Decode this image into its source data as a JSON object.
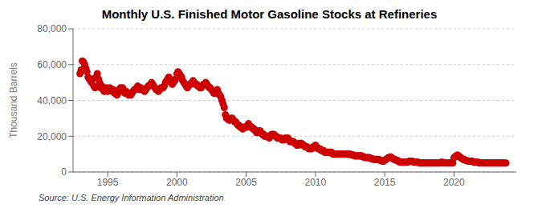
{
  "chart_data": {
    "type": "scatter",
    "title": "Monthly U.S. Finished Motor Gasoline Stocks at Refineries",
    "y_label": "Thousand Barrels",
    "annotations": [
      "Source: U.S. Energy Information Administration"
    ],
    "color": "#CC0000",
    "grid": "y",
    "xlim": [
      1992.5,
      2024.5
    ],
    "xticks": [
      1995,
      2000,
      2005,
      2010,
      2015,
      2020
    ],
    "ylim": [
      0,
      80000
    ],
    "yticks": [
      0,
      {
        "value": 20000,
        "label": "20,000"
      },
      {
        "value": 40000,
        "label": "40,000"
      },
      {
        "value": 60000,
        "label": "60,000"
      },
      {
        "value": 80000,
        "label": "80,000"
      }
    ],
    "x": [
      1993.0,
      1993.083,
      1993.167,
      1993.25,
      1993.333,
      1993.417,
      1993.5,
      1993.583,
      1993.667,
      1993.75,
      1993.833,
      1993.917,
      1994.0,
      1994.083,
      1994.167,
      1994.25,
      1994.333,
      1994.417,
      1994.5,
      1994.583,
      1994.667,
      1994.75,
      1994.833,
      1994.917,
      1995.0,
      1995.083,
      1995.167,
      1995.25,
      1995.333,
      1995.417,
      1995.5,
      1995.583,
      1995.667,
      1995.75,
      1995.833,
      1995.917,
      1996.0,
      1996.083,
      1996.167,
      1996.25,
      1996.333,
      1996.417,
      1996.5,
      1996.583,
      1996.667,
      1996.75,
      1996.833,
      1996.917,
      1997.0,
      1997.083,
      1997.167,
      1997.25,
      1997.333,
      1997.417,
      1997.5,
      1997.583,
      1997.667,
      1997.75,
      1997.833,
      1997.917,
      1998.0,
      1998.083,
      1998.167,
      1998.25,
      1998.333,
      1998.417,
      1998.5,
      1998.583,
      1998.667,
      1998.75,
      1998.833,
      1998.917,
      1999.0,
      1999.083,
      1999.167,
      1999.25,
      1999.333,
      1999.417,
      1999.5,
      1999.583,
      1999.667,
      1999.75,
      1999.833,
      1999.917,
      2000.0,
      2000.083,
      2000.167,
      2000.25,
      2000.333,
      2000.417,
      2000.5,
      2000.583,
      2000.667,
      2000.75,
      2000.833,
      2000.917,
      2001.0,
      2001.083,
      2001.167,
      2001.25,
      2001.333,
      2001.417,
      2001.5,
      2001.583,
      2001.667,
      2001.75,
      2001.833,
      2001.917,
      2002.0,
      2002.083,
      2002.167,
      2002.25,
      2002.333,
      2002.417,
      2002.5,
      2002.583,
      2002.667,
      2002.75,
      2002.833,
      2002.917,
      2003.0,
      2003.083,
      2003.167,
      2003.25,
      2003.333,
      2003.417,
      2003.5,
      2003.583,
      2003.667,
      2003.75,
      2003.833,
      2003.917,
      2004.0,
      2004.083,
      2004.167,
      2004.25,
      2004.333,
      2004.417,
      2004.5,
      2004.583,
      2004.667,
      2004.75,
      2004.833,
      2004.917,
      2005.0,
      2005.083,
      2005.167,
      2005.25,
      2005.333,
      2005.417,
      2005.5,
      2005.583,
      2005.667,
      2005.75,
      2005.833,
      2005.917,
      2006.0,
      2006.083,
      2006.167,
      2006.25,
      2006.333,
      2006.417,
      2006.5,
      2006.583,
      2006.667,
      2006.75,
      2006.833,
      2006.917,
      2007.0,
      2007.083,
      2007.167,
      2007.25,
      2007.333,
      2007.417,
      2007.5,
      2007.583,
      2007.667,
      2007.75,
      2007.833,
      2007.917,
      2008.0,
      2008.083,
      2008.167,
      2008.25,
      2008.333,
      2008.417,
      2008.5,
      2008.583,
      2008.667,
      2008.75,
      2008.833,
      2008.917,
      2009.0,
      2009.083,
      2009.167,
      2009.25,
      2009.333,
      2009.417,
      2009.5,
      2009.583,
      2009.667,
      2009.75,
      2009.833,
      2009.917,
      2010.0,
      2010.083,
      2010.167,
      2010.25,
      2010.333,
      2010.417,
      2010.5,
      2010.583,
      2010.667,
      2010.75,
      2010.833,
      2010.917,
      2011.0,
      2011.083,
      2011.167,
      2011.25,
      2011.333,
      2011.417,
      2011.5,
      2011.583,
      2011.667,
      2011.75,
      2011.833,
      2011.917,
      2012.0,
      2012.083,
      2012.167,
      2012.25,
      2012.333,
      2012.417,
      2012.5,
      2012.583,
      2012.667,
      2012.75,
      2012.833,
      2012.917,
      2013.0,
      2013.083,
      2013.167,
      2013.25,
      2013.333,
      2013.417,
      2013.5,
      2013.583,
      2013.667,
      2013.75,
      2013.833,
      2013.917,
      2014.0,
      2014.083,
      2014.167,
      2014.25,
      2014.333,
      2014.417,
      2014.5,
      2014.583,
      2014.667,
      2014.75,
      2014.833,
      2014.917,
      2015.0,
      2015.083,
      2015.167,
      2015.25,
      2015.333,
      2015.417,
      2015.5,
      2015.583,
      2015.667,
      2015.75,
      2015.833,
      2015.917,
      2016.0,
      2016.083,
      2016.167,
      2016.25,
      2016.333,
      2016.417,
      2016.5,
      2016.583,
      2016.667,
      2016.75,
      2016.833,
      2016.917,
      2017.0,
      2017.083,
      2017.167,
      2017.25,
      2017.333,
      2017.417,
      2017.5,
      2017.583,
      2017.667,
      2017.75,
      2017.833,
      2017.917,
      2018.0,
      2018.083,
      2018.167,
      2018.25,
      2018.333,
      2018.417,
      2018.5,
      2018.583,
      2018.667,
      2018.75,
      2018.833,
      2018.917,
      2019.0,
      2019.083,
      2019.167,
      2019.25,
      2019.333,
      2019.417,
      2019.5,
      2019.583,
      2019.667,
      2019.75,
      2019.833,
      2019.917,
      2020.0,
      2020.083,
      2020.167,
      2020.25,
      2020.333,
      2020.417,
      2020.5,
      2020.583,
      2020.667,
      2020.75,
      2020.833,
      2020.917,
      2021.0,
      2021.083,
      2021.167,
      2021.25,
      2021.333,
      2021.417,
      2021.5,
      2021.583,
      2021.667,
      2021.75,
      2021.833,
      2021.917,
      2022.0,
      2022.083,
      2022.167,
      2022.25,
      2022.333,
      2022.417,
      2022.5,
      2022.583,
      2022.667,
      2022.75,
      2022.833,
      2022.917,
      2023.0,
      2023.083,
      2023.167,
      2023.25,
      2023.333,
      2023.417,
      2023.5,
      2023.583,
      2023.667,
      2023.75
    ],
    "values": [
      55000,
      57000,
      62000,
      61500,
      60000,
      58000,
      56000,
      53000,
      52000,
      51000,
      50000,
      52000,
      48000,
      47000,
      53000,
      55000,
      52000,
      50000,
      47000,
      48000,
      46000,
      45000,
      46000,
      47000,
      45000,
      46000,
      47000,
      46000,
      45000,
      46000,
      44000,
      44000,
      43000,
      44000,
      46000,
      47000,
      46000,
      47000,
      45000,
      44000,
      45000,
      44000,
      43000,
      44000,
      43000,
      44000,
      45000,
      46000,
      46000,
      47000,
      48000,
      47000,
      46000,
      47000,
      46000,
      46000,
      45000,
      46000,
      47000,
      48000,
      48000,
      49000,
      50000,
      49000,
      48000,
      47000,
      46000,
      46000,
      45000,
      46000,
      47000,
      47000,
      47000,
      48000,
      50000,
      51000,
      52000,
      53000,
      52000,
      50000,
      49000,
      50000,
      51000,
      52000,
      55000,
      56000,
      55000,
      54000,
      53000,
      51000,
      50000,
      49000,
      48000,
      47000,
      48000,
      49000,
      49000,
      50000,
      51000,
      50000,
      49000,
      49000,
      48000,
      48000,
      47000,
      47000,
      48000,
      49000,
      49000,
      50000,
      49000,
      48000,
      47000,
      47000,
      46000,
      45000,
      44000,
      44000,
      45000,
      46000,
      44000,
      43000,
      42000,
      40000,
      38000,
      36000,
      32000,
      30000,
      30000,
      29000,
      29000,
      30000,
      30000,
      29000,
      28000,
      28000,
      27000,
      26000,
      26000,
      25000,
      25000,
      24000,
      25000,
      25000,
      25000,
      26000,
      27000,
      26000,
      25000,
      25000,
      24000,
      24000,
      23000,
      22000,
      22000,
      23000,
      23000,
      22000,
      21000,
      21000,
      20000,
      20000,
      20000,
      20000,
      19000,
      20000,
      21000,
      21000,
      21000,
      20000,
      20000,
      19000,
      19000,
      19000,
      19000,
      18000,
      18000,
      18000,
      19000,
      19000,
      19000,
      18000,
      17000,
      17000,
      17000,
      17000,
      16000,
      16000,
      15000,
      15000,
      16000,
      16000,
      16000,
      15000,
      15000,
      14000,
      14000,
      14000,
      13000,
      13000,
      13000,
      13000,
      14000,
      14000,
      15000,
      14000,
      13000,
      13000,
      13000,
      12000,
      12000,
      12000,
      11000,
      11000,
      11000,
      11000,
      11000,
      11000,
      11000,
      10000,
      10000,
      10000,
      10000,
      10000,
      10000,
      10000,
      10000,
      10000,
      10000,
      10000,
      10000,
      10000,
      10000,
      10000,
      10000,
      9500,
      9500,
      9500,
      9000,
      9000,
      9000,
      9000,
      9000,
      9000,
      9000,
      8500,
      8500,
      8000,
      8000,
      8000,
      8000,
      8000,
      7500,
      7500,
      7000,
      7000,
      7000,
      7000,
      7000,
      7000,
      6500,
      6500,
      6000,
      6000,
      6500,
      7000,
      7500,
      8000,
      8000,
      8500,
      8000,
      7500,
      7000,
      7000,
      6500,
      6500,
      6000,
      5500,
      5500,
      5500,
      5500,
      5500,
      5500,
      5500,
      5500,
      6000,
      6000,
      6000,
      6000,
      5500,
      5500,
      5500,
      5500,
      5500,
      5000,
      5000,
      5000,
      5000,
      5000,
      5000,
      5000,
      5000,
      5000,
      5000,
      5000,
      5000,
      5000,
      5000,
      5000,
      5000,
      5000,
      5000,
      5000,
      5500,
      5500,
      5000,
      5000,
      5000,
      5000,
      5000,
      5000,
      5000,
      5000,
      5000,
      8000,
      8500,
      9000,
      9500,
      9000,
      8500,
      8000,
      7500,
      7000,
      7000,
      6500,
      6500,
      6000,
      6000,
      6000,
      6000,
      6000,
      5500,
      5500,
      5500,
      5500,
      5500,
      5000,
      5000,
      5000,
      5000,
      5000,
      5000,
      5000,
      5000,
      5000,
      5000,
      5000,
      5000,
      5000,
      5000,
      5000,
      5000,
      5000,
      5000,
      5000,
      5000,
      5000,
      5000,
      5000,
      5000
    ]
  }
}
